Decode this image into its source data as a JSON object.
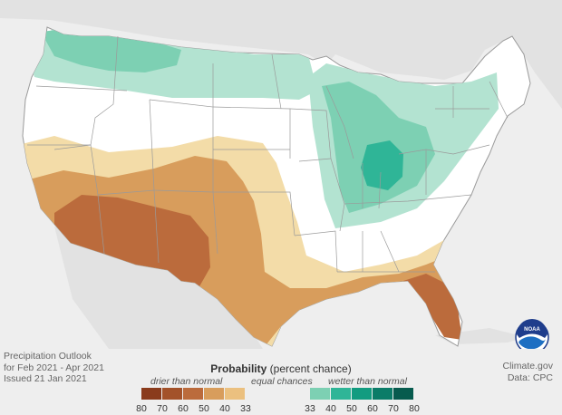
{
  "caption": {
    "line1": "Precipitation Outlook",
    "line2": "for Feb 2021 - Apr 2021",
    "line3": "Issued 21 Jan 2021"
  },
  "credit": {
    "line1": "Climate.gov",
    "line2": "Data: CPC"
  },
  "legend": {
    "title_bold": "Probability",
    "title_rest": " (percent chance)",
    "drier_label": "drier than normal",
    "equal_label": "equal chances",
    "wetter_label": "wetter than normal",
    "dry_ticks": [
      "80",
      "70",
      "60",
      "50",
      "40",
      "33"
    ],
    "wet_ticks": [
      "33",
      "40",
      "50",
      "60",
      "70",
      "80"
    ],
    "dry_colors": [
      "#8a3b1c",
      "#a3522a",
      "#bb6b3c",
      "#d89d5c",
      "#ebc07f",
      "#f3dca8"
    ],
    "wet_colors": [
      "#b3e3d1",
      "#7dd0b3",
      "#2fb597",
      "#129c80",
      "#0b7c68",
      "#075b4e"
    ]
  },
  "map_colors": {
    "background": "#eeeeee",
    "land_neighbors": "#e0e0e0",
    "us_land": "#ffffff",
    "state_lines": "#9a9a9a"
  },
  "logo": {
    "text": "NOAA"
  }
}
